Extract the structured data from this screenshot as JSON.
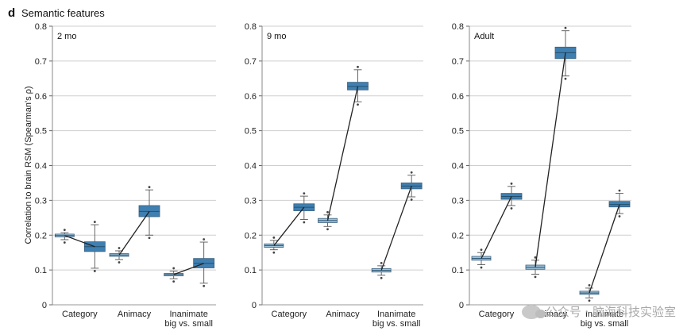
{
  "panel_letter": "d",
  "figure_title": "Semantic features",
  "y_axis_label": "Correlation to brain RSM (Spearman's ρ)",
  "watermark": "公众号 · 脑海科技实验室",
  "colors": {
    "light_box": "#9fc2d9",
    "dark_box": "#3f7fb1",
    "grid": "#cfcfcf",
    "line": "#222222"
  },
  "chart_data": [
    {
      "type": "box",
      "title": "2 mo",
      "ylim": [
        0,
        0.8
      ],
      "yticks": [
        "0",
        "0.1",
        "0.2",
        "0.3",
        "0.4",
        "0.5",
        "0.6",
        "0.7",
        "0.8"
      ],
      "categories": [
        "Category",
        "Animacy",
        [
          "Inanimate",
          "big vs. small"
        ]
      ],
      "series": [
        {
          "name": "light",
          "boxes": [
            {
              "low": 0.187,
              "q1": 0.195,
              "median": 0.199,
              "q3": 0.203,
              "high": 0.207
            },
            {
              "low": 0.13,
              "q1": 0.139,
              "median": 0.143,
              "q3": 0.147,
              "high": 0.155
            },
            {
              "low": 0.075,
              "q1": 0.083,
              "median": 0.087,
              "q3": 0.09,
              "high": 0.097
            }
          ]
        },
        {
          "name": "dark",
          "boxes": [
            {
              "low": 0.105,
              "q1": 0.153,
              "median": 0.167,
              "q3": 0.181,
              "high": 0.23
            },
            {
              "low": 0.2,
              "q1": 0.253,
              "median": 0.268,
              "q3": 0.285,
              "high": 0.33
            },
            {
              "low": 0.062,
              "q1": 0.106,
              "median": 0.119,
              "q3": 0.133,
              "high": 0.18
            }
          ]
        }
      ]
    },
    {
      "type": "box",
      "title": "9 mo",
      "ylim": [
        0,
        0.8
      ],
      "yticks": [
        "0",
        "0.1",
        "0.2",
        "0.3",
        "0.4",
        "0.5",
        "0.6",
        "0.7",
        "0.8"
      ],
      "categories": [
        "Category",
        "Animacy",
        [
          "Inanimate",
          "big vs. small"
        ]
      ],
      "series": [
        {
          "name": "light",
          "boxes": [
            {
              "low": 0.158,
              "q1": 0.165,
              "median": 0.17,
              "q3": 0.175,
              "high": 0.185
            },
            {
              "low": 0.225,
              "q1": 0.236,
              "median": 0.242,
              "q3": 0.248,
              "high": 0.258
            },
            {
              "low": 0.085,
              "q1": 0.094,
              "median": 0.099,
              "q3": 0.104,
              "high": 0.112
            }
          ]
        },
        {
          "name": "dark",
          "boxes": [
            {
              "low": 0.245,
              "q1": 0.27,
              "median": 0.28,
              "q3": 0.29,
              "high": 0.312
            },
            {
              "low": 0.583,
              "q1": 0.617,
              "median": 0.627,
              "q3": 0.639,
              "high": 0.675
            },
            {
              "low": 0.31,
              "q1": 0.333,
              "median": 0.341,
              "q3": 0.35,
              "high": 0.372
            }
          ]
        }
      ]
    },
    {
      "type": "box",
      "title": "Adult",
      "ylim": [
        0,
        0.8
      ],
      "yticks": [
        "0",
        "0.1",
        "0.2",
        "0.3",
        "0.4",
        "0.5",
        "0.6",
        "0.7",
        "0.8"
      ],
      "categories": [
        "Category",
        "Animacy",
        [
          "Inanimate",
          "big vs. small"
        ]
      ],
      "series": [
        {
          "name": "light",
          "boxes": [
            {
              "low": 0.115,
              "q1": 0.128,
              "median": 0.133,
              "q3": 0.139,
              "high": 0.15
            },
            {
              "low": 0.088,
              "q1": 0.102,
              "median": 0.108,
              "q3": 0.114,
              "high": 0.128
            },
            {
              "low": 0.02,
              "q1": 0.03,
              "median": 0.034,
              "q3": 0.039,
              "high": 0.048
            }
          ]
        },
        {
          "name": "dark",
          "boxes": [
            {
              "low": 0.285,
              "q1": 0.303,
              "median": 0.311,
              "q3": 0.32,
              "high": 0.34
            },
            {
              "low": 0.657,
              "q1": 0.707,
              "median": 0.724,
              "q3": 0.74,
              "high": 0.787
            },
            {
              "low": 0.262,
              "q1": 0.281,
              "median": 0.288,
              "q3": 0.297,
              "high": 0.32
            }
          ]
        }
      ]
    }
  ]
}
